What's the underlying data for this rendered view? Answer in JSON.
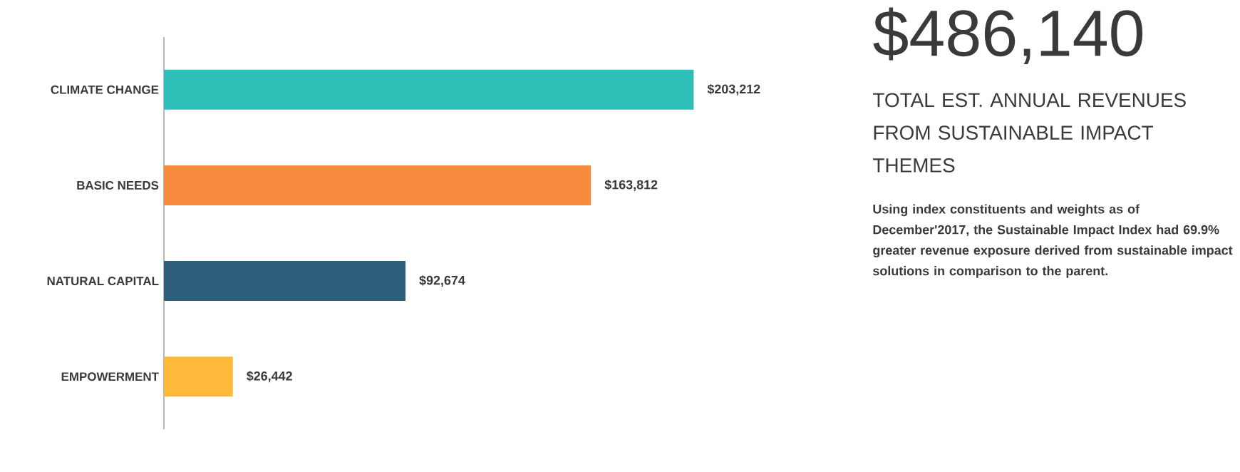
{
  "chart_data": {
    "type": "bar",
    "orientation": "horizontal",
    "title": "$486,140",
    "subtitle": "TOTAL EST. ANNUAL REVENUES FROM SUSTAINABLE IMPACT THEMES",
    "categories": [
      "CLIMATE CHANGE",
      "BASIC NEEDS",
      "NATURAL CAPITAL",
      "EMPOWERMENT"
    ],
    "values": [
      203212,
      163812,
      92674,
      26442
    ],
    "colors": [
      "#2ebfb8",
      "#f78b3d",
      "#2f5f7a",
      "#fdb93a"
    ],
    "value_labels": [
      "$203,212",
      "$163,812",
      "$92,674",
      "$26,442"
    ],
    "annotations": [
      "Using index constituents and weights as of December'2017, the Sustainable Impact Index had 69.9% greater revenue exposure derived from sustainable impact solutions in comparison to the parent."
    ]
  }
}
